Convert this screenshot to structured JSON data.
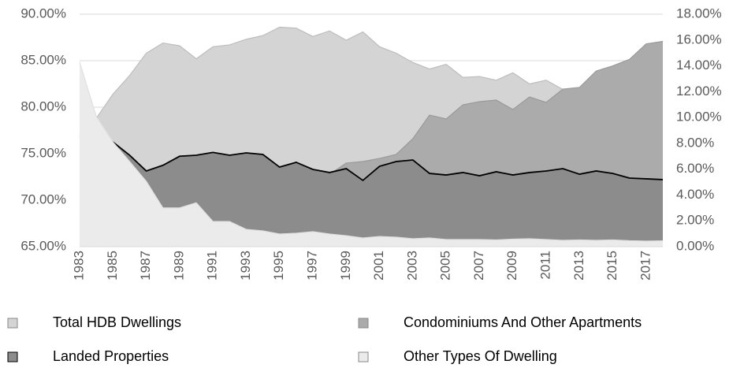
{
  "chart_data": {
    "type": "area",
    "categories": [
      "1983",
      null,
      "1985",
      null,
      "1987",
      null,
      "1989",
      null,
      "1991",
      null,
      "1993",
      null,
      "1995",
      null,
      "1997",
      null,
      "1999",
      null,
      "2001",
      null,
      "2003",
      null,
      "2005",
      null,
      "2007",
      null,
      "2009",
      null,
      "2011",
      null,
      "2013",
      null,
      "2015",
      null,
      "2017",
      null
    ],
    "series": [
      {
        "name": "Total HDB Dwellings",
        "color": "#d4d4d4",
        "line": "#bdbdbd",
        "axis": "y",
        "values": [
          77,
          78.8,
          81.4,
          83.4,
          85.8,
          86.9,
          86.6,
          85.2,
          86.5,
          86.7,
          87.3,
          87.7,
          88.6,
          88.5,
          87.6,
          88.2,
          87.2,
          88.1,
          86.5,
          85.8,
          84.8,
          84.1,
          84.6,
          83.2,
          83.3,
          82.9,
          83.7,
          82.5,
          82.9,
          81.9,
          81.5,
          81,
          80.8,
          80.5,
          80,
          79.8
        ]
      },
      {
        "name": "Condominiums And Other Apartments",
        "color": "#ababab",
        "line": "#9a9a9a",
        "axis": "y2",
        "values": [
          2.5,
          2.7,
          3.0,
          3.3,
          3.6,
          3.9,
          4.2,
          4.5,
          4.8,
          5.0,
          5.1,
          5.2,
          5.3,
          5.4,
          5.5,
          5.6,
          6.47,
          6.59,
          6.83,
          7.14,
          8.36,
          10.19,
          9.89,
          10.98,
          11.23,
          11.35,
          10.62,
          11.59,
          11.17,
          12.2,
          12.33,
          13.6,
          14.0,
          14.5,
          15.7,
          15.9
        ]
      },
      {
        "name": "Landed Properties",
        "color": "#8c8c8c",
        "line": "#000000",
        "axis": "y2",
        "values": [
          8.5,
          8.3,
          8.1,
          7.08,
          5.86,
          6.3,
          7.0,
          7.08,
          7.3,
          7.08,
          7.26,
          7.14,
          6.16,
          6.53,
          5.98,
          5.74,
          6.04,
          5.13,
          6.22,
          6.59,
          6.71,
          5.67,
          5.55,
          5.74,
          5.49,
          5.8,
          5.55,
          5.74,
          5.86,
          6.04,
          5.61,
          5.86,
          5.67,
          5.31,
          5.25,
          5.19
        ]
      },
      {
        "name": "Other Types Of Dwelling",
        "color": "#ebebeb",
        "line": "#e0e0e0",
        "axis": "y2",
        "values": [
          14.3,
          10.07,
          8.1,
          6.6,
          5.06,
          3.0,
          3.0,
          3.4,
          1.95,
          1.95,
          1.34,
          1.22,
          0.98,
          1.04,
          1.16,
          0.98,
          0.85,
          0.67,
          0.79,
          0.73,
          0.61,
          0.67,
          0.55,
          0.55,
          0.55,
          0.52,
          0.58,
          0.61,
          0.55,
          0.49,
          0.52,
          0.49,
          0.52,
          0.46,
          0.43,
          0.45
        ]
      }
    ],
    "ylim": [
      65,
      90
    ],
    "yticks": [
      {
        "value": 65,
        "label": "65.00%"
      },
      {
        "value": 70,
        "label": "70.00%"
      },
      {
        "value": 75,
        "label": "75.00%"
      },
      {
        "value": 80,
        "label": "80.00%"
      },
      {
        "value": 85,
        "label": "85.00%"
      },
      {
        "value": 90,
        "label": "90.00%"
      }
    ],
    "y2lim": [
      0,
      18
    ],
    "y2ticks": [
      {
        "value": 0,
        "label": "0.00%"
      },
      {
        "value": 2,
        "label": "2.00%"
      },
      {
        "value": 4,
        "label": "4.00%"
      },
      {
        "value": 6,
        "label": "6.00%"
      },
      {
        "value": 8,
        "label": "8.00%"
      },
      {
        "value": 10,
        "label": "10.00%"
      },
      {
        "value": 12,
        "label": "12.00%"
      },
      {
        "value": 14,
        "label": "14.00%"
      },
      {
        "value": 16,
        "label": "16.00%"
      },
      {
        "value": 18,
        "label": "18.00%"
      }
    ],
    "grid": true
  }
}
